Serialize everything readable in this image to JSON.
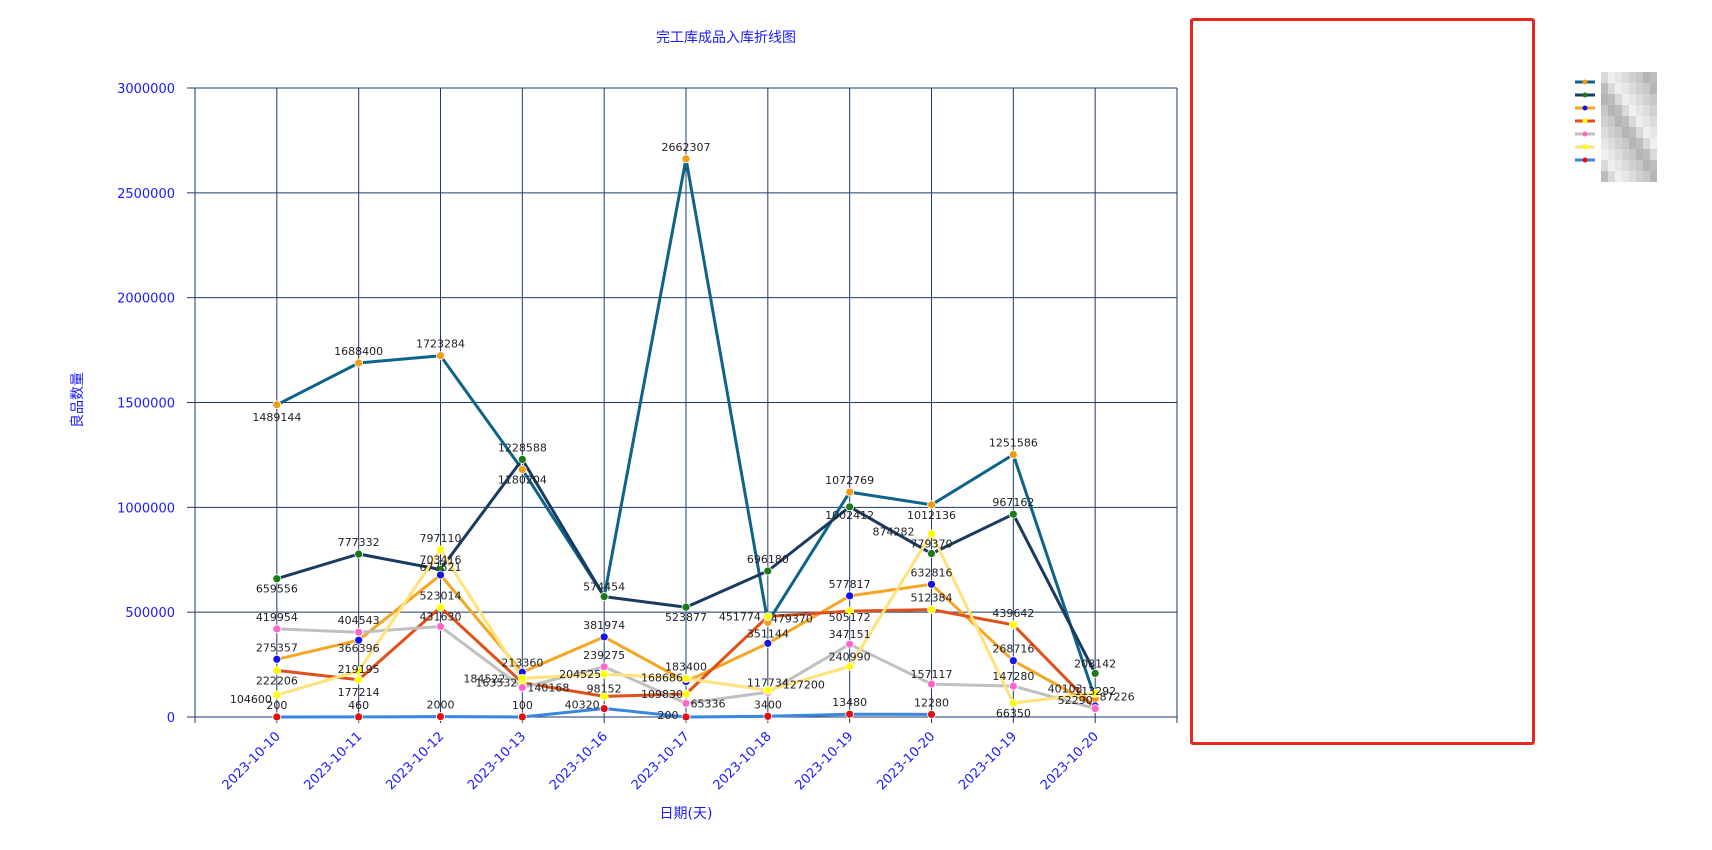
{
  "chart_data": {
    "type": "line",
    "title": "完工库成品入库折线图",
    "xlabel": "日期(天)",
    "ylabel": "良品数量",
    "ylim": [
      0,
      3000000
    ],
    "yticks": [
      "0",
      "500000",
      "1000000",
      "1500000",
      "2000000",
      "2500000",
      "3000000"
    ],
    "categories": [
      "2023-10-10",
      "2023-10-11",
      "2023-10-12",
      "2023-10-13",
      "2023-10-16",
      "2023-10-17",
      "2023-10-18",
      "2023-10-19",
      "2023-10-20",
      "2023-10-19",
      "2023-10-20"
    ],
    "grid": true,
    "legend_position": "right (obscured)",
    "series": [
      {
        "color": "#0e6388",
        "marker": "#f39c12",
        "values": [
          1489144,
          1688400,
          1723284,
          1180204,
          574454,
          2662307,
          451774,
          1072769,
          1012136,
          1251586,
          87226
        ]
      },
      {
        "color": "#1b3a60",
        "marker": "#1a7a1a",
        "values": [
          659556,
          777332,
          703416,
          1228588,
          574454,
          523877,
          696180,
          1002412,
          779370,
          967162,
          208142
        ]
      },
      {
        "color": "#f5a623",
        "marker": "#1414e6",
        "values": [
          275357,
          366396,
          677521,
          213360,
          381974,
          168686,
          351144,
          577817,
          632816,
          268716,
          52290
        ]
      },
      {
        "color": "#e0501a",
        "marker": "#ffff00",
        "values": [
          222206,
          177214,
          523014,
          163532,
          98152,
          109830,
          479370,
          505172,
          512384,
          439642,
          40103
        ]
      },
      {
        "color": "#c0c0c0",
        "marker": "#ff66cc",
        "values": [
          419954,
          404543,
          431630,
          140168,
          239275,
          65336,
          117734,
          347151,
          157117,
          147280,
          40103
        ]
      },
      {
        "color": "#ffe27a",
        "marker": "#ffff00",
        "values": [
          104600,
          219195,
          797110,
          184522,
          204525,
          183400,
          127200,
          240990,
          874282,
          66350,
          113292
        ]
      },
      {
        "color": "#3a86e0",
        "marker": "#e01010",
        "values": [
          200,
          460,
          2000,
          100,
          40320,
          200,
          3400,
          13480,
          12280,
          null,
          null
        ]
      }
    ]
  },
  "data_labels": [
    {
      "text": "1489144",
      "series": 0,
      "i": 0,
      "dy": 16
    },
    {
      "text": "1688400",
      "series": 0,
      "i": 1,
      "dy": -8
    },
    {
      "text": "1723284",
      "series": 0,
      "i": 2,
      "dy": -8
    },
    {
      "text": "1180204",
      "series": 0,
      "i": 3,
      "dy": 14
    },
    {
      "text": "2662307",
      "series": 0,
      "i": 5,
      "dy": -8
    },
    {
      "text": "451774",
      "series": 0,
      "i": 6,
      "dx": -28,
      "dy": -2
    },
    {
      "text": "1072769",
      "series": 0,
      "i": 7,
      "dy": -8
    },
    {
      "text": "1012136",
      "series": 0,
      "i": 8,
      "dy": 14
    },
    {
      "text": "1251586",
      "series": 0,
      "i": 9,
      "dy": -8
    },
    {
      "text": "87226",
      "series": 0,
      "i": 10,
      "dx": 22,
      "dy": 2
    },
    {
      "text": "659556",
      "series": 1,
      "i": 0,
      "dy": 14
    },
    {
      "text": "777332",
      "series": 1,
      "i": 1,
      "dy": -8
    },
    {
      "text": "703416",
      "series": 1,
      "i": 2,
      "dy": -6
    },
    {
      "text": "1228588",
      "series": 1,
      "i": 3,
      "dy": -8
    },
    {
      "text": "574454",
      "series": 1,
      "i": 4,
      "dy": -6
    },
    {
      "text": "523877",
      "series": 1,
      "i": 5,
      "dy": 14
    },
    {
      "text": "696180",
      "series": 1,
      "i": 6,
      "dy": -8
    },
    {
      "text": "1002412",
      "series": 1,
      "i": 7,
      "dy": 12
    },
    {
      "text": "779370",
      "series": 1,
      "i": 8,
      "dy": -6
    },
    {
      "text": "967162",
      "series": 1,
      "i": 9,
      "dy": -8
    },
    {
      "text": "208142",
      "series": 1,
      "i": 10,
      "dy": -6
    },
    {
      "text": "275357",
      "series": 2,
      "i": 0,
      "dy": -8
    },
    {
      "text": "366396",
      "series": 2,
      "i": 1,
      "dy": 12
    },
    {
      "text": "677521",
      "series": 2,
      "i": 2,
      "dy": -4
    },
    {
      "text": "213360",
      "series": 2,
      "i": 3,
      "dy": -6
    },
    {
      "text": "381974",
      "series": 2,
      "i": 4,
      "dy": -8
    },
    {
      "text": "168686",
      "series": 2,
      "i": 5,
      "dx": -24,
      "dy": 0
    },
    {
      "text": "351144",
      "series": 2,
      "i": 6,
      "dy": -6
    },
    {
      "text": "577817",
      "series": 2,
      "i": 7,
      "dy": -8
    },
    {
      "text": "632816",
      "series": 2,
      "i": 8,
      "dy": -8
    },
    {
      "text": "268716",
      "series": 2,
      "i": 9,
      "dy": -8
    },
    {
      "text": "52290",
      "series": 2,
      "i": 10,
      "dx": -20,
      "dy": -2
    },
    {
      "text": "222206",
      "series": 3,
      "i": 0,
      "dy": 14
    },
    {
      "text": "177214",
      "series": 3,
      "i": 1,
      "dy": 16
    },
    {
      "text": "523014",
      "series": 3,
      "i": 2,
      "dy": -8
    },
    {
      "text": "163532",
      "series": 3,
      "i": 3,
      "dx": -26,
      "dy": 4
    },
    {
      "text": "98152",
      "series": 3,
      "i": 4,
      "dy": -4
    },
    {
      "text": "109830",
      "series": 3,
      "i": 5,
      "dx": -24,
      "dy": 4
    },
    {
      "text": "479370",
      "series": 3,
      "i": 6,
      "dx": 24,
      "dy": 6
    },
    {
      "text": "505172",
      "series": 3,
      "i": 7,
      "dy": 10
    },
    {
      "text": "512384",
      "series": 3,
      "i": 8,
      "dy": -8
    },
    {
      "text": "439642",
      "series": 3,
      "i": 9,
      "dy": -8
    },
    {
      "text": "419954",
      "series": 4,
      "i": 0,
      "dy": -8
    },
    {
      "text": "404543",
      "series": 4,
      "i": 1,
      "dy": -8
    },
    {
      "text": "431630",
      "series": 4,
      "i": 2,
      "dy": -6
    },
    {
      "text": "140168",
      "series": 4,
      "i": 3,
      "dx": 26,
      "dy": 4
    },
    {
      "text": "239275",
      "series": 4,
      "i": 4,
      "dy": -8
    },
    {
      "text": "65336",
      "series": 4,
      "i": 5,
      "dx": 22,
      "dy": 4
    },
    {
      "text": "117734",
      "series": 4,
      "i": 6,
      "dy": -6
    },
    {
      "text": "347151",
      "series": 4,
      "i": 7,
      "dy": -6
    },
    {
      "text": "157117",
      "series": 4,
      "i": 8,
      "dy": -6
    },
    {
      "text": "147280",
      "series": 4,
      "i": 9,
      "dy": -6
    },
    {
      "text": "40103",
      "series": 4,
      "i": 10,
      "dx": -30,
      "dy": -16
    },
    {
      "text": "104600",
      "series": 5,
      "i": 0,
      "dx": -26,
      "dy": 8
    },
    {
      "text": "219195",
      "series": 5,
      "i": 1,
      "dy": 2
    },
    {
      "text": "797110",
      "series": 5,
      "i": 2,
      "dy": -8
    },
    {
      "text": "184522",
      "series": 5,
      "i": 3,
      "dx": -38,
      "dy": 4
    },
    {
      "text": "204525",
      "series": 5,
      "i": 4,
      "dx": -24,
      "dy": 4
    },
    {
      "text": "183400",
      "series": 5,
      "i": 5,
      "dy": -8
    },
    {
      "text": "127200",
      "series": 5,
      "i": 6,
      "dx": 36,
      "dy": -2
    },
    {
      "text": "240990",
      "series": 5,
      "i": 7,
      "dy": -6
    },
    {
      "text": "874282",
      "series": 5,
      "i": 8,
      "dx": -38,
      "dy": 2
    },
    {
      "text": "66350",
      "series": 5,
      "i": 9,
      "dy": 14
    },
    {
      "text": "113292",
      "series": 5,
      "i": 10,
      "dy": 2
    },
    {
      "text": "200",
      "series": 6,
      "i": 0,
      "dy": -8
    },
    {
      "text": "460",
      "series": 6,
      "i": 1,
      "dy": -8
    },
    {
      "text": "2000",
      "series": 6,
      "i": 2,
      "dy": -8
    },
    {
      "text": "100",
      "series": 6,
      "i": 3,
      "dy": -8
    },
    {
      "text": "40320",
      "series": 6,
      "i": 4,
      "dx": -22,
      "dy": 0
    },
    {
      "text": "200",
      "series": 6,
      "i": 5,
      "dx": -18,
      "dy": 2
    },
    {
      "text": "3400",
      "series": 6,
      "i": 6,
      "dy": -8
    },
    {
      "text": "13480",
      "series": 6,
      "i": 7,
      "dy": -8
    },
    {
      "text": "12280",
      "series": 6,
      "i": 8,
      "dy": -8
    }
  ]
}
